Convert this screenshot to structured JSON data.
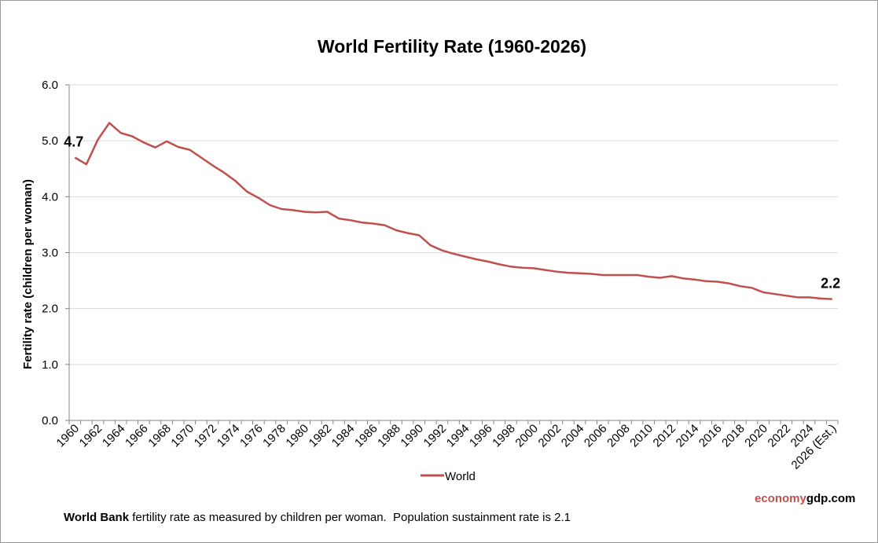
{
  "chart_data": {
    "type": "line",
    "title": "World Fertility Rate (1960-2026)",
    "ylabel": "Fertility rate (children per woman)",
    "xlabel": "",
    "ylim": [
      0,
      6
    ],
    "y_ticks": [
      "0.0",
      "1.0",
      "2.0",
      "3.0",
      "4.0",
      "5.0",
      "6.0"
    ],
    "grid": true,
    "legend_position": "bottom",
    "x_tick_labels": [
      "1960",
      "1962",
      "1964",
      "1966",
      "1968",
      "1970",
      "1972",
      "1974",
      "1976",
      "1978",
      "1980",
      "1982",
      "1984",
      "1986",
      "1988",
      "1990",
      "1992",
      "1994",
      "1996",
      "1998",
      "2000",
      "2002",
      "2004",
      "2006",
      "2008",
      "2010",
      "2012",
      "2014",
      "2016",
      "2018",
      "2020",
      "2022",
      "2024",
      "2026 (Est.)"
    ],
    "x": [
      "1960",
      "1961",
      "1962",
      "1963",
      "1964",
      "1965",
      "1966",
      "1967",
      "1968",
      "1969",
      "1970",
      "1971",
      "1972",
      "1973",
      "1974",
      "1975",
      "1976",
      "1977",
      "1978",
      "1979",
      "1980",
      "1981",
      "1982",
      "1983",
      "1984",
      "1985",
      "1986",
      "1987",
      "1988",
      "1989",
      "1990",
      "1991",
      "1992",
      "1993",
      "1994",
      "1995",
      "1996",
      "1997",
      "1998",
      "1999",
      "2000",
      "2001",
      "2002",
      "2003",
      "2004",
      "2005",
      "2006",
      "2007",
      "2008",
      "2009",
      "2010",
      "2011",
      "2012",
      "2013",
      "2014",
      "2015",
      "2016",
      "2017",
      "2018",
      "2019",
      "2020",
      "2021",
      "2022",
      "2023",
      "2024",
      "2025",
      "2026 (Est.)"
    ],
    "series": [
      {
        "name": "World",
        "color": "#c0504d",
        "values": [
          4.7,
          4.58,
          5.02,
          5.32,
          5.14,
          5.08,
          4.97,
          4.88,
          4.99,
          4.89,
          4.84,
          4.7,
          4.56,
          4.43,
          4.28,
          4.09,
          3.98,
          3.85,
          3.78,
          3.76,
          3.73,
          3.72,
          3.73,
          3.61,
          3.58,
          3.54,
          3.52,
          3.49,
          3.4,
          3.35,
          3.31,
          3.13,
          3.04,
          2.98,
          2.93,
          2.88,
          2.84,
          2.79,
          2.75,
          2.73,
          2.72,
          2.69,
          2.66,
          2.64,
          2.63,
          2.62,
          2.6,
          2.6,
          2.6,
          2.6,
          2.57,
          2.55,
          2.58,
          2.54,
          2.52,
          2.49,
          2.48,
          2.45,
          2.4,
          2.37,
          2.29,
          2.26,
          2.23,
          2.2,
          2.2,
          2.18,
          2.17
        ]
      }
    ],
    "annotations": [
      {
        "text": "4.7",
        "point": "1960"
      },
      {
        "text": "2.2",
        "point": "2026 (Est.)"
      }
    ]
  },
  "footnote": {
    "bold": "World Bank",
    "text": " fertility rate as measured by children per woman.  Population sustainment rate is 2.1"
  },
  "brand": {
    "part1": "economy",
    "part2": "gdp.com"
  }
}
